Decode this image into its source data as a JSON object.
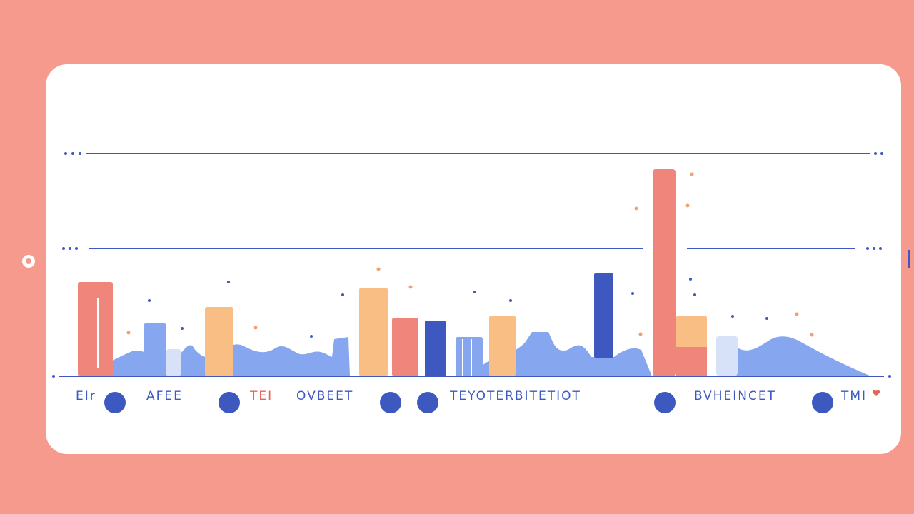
{
  "labels": [
    "EIr",
    "AFEE",
    "TEI",
    "OVBEET",
    "TEYOTERBITETIOT",
    "BVHEINCET",
    "TMI"
  ]
}
